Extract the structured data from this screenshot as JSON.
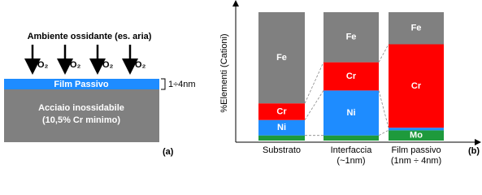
{
  "panel_a": {
    "heading": "Ambiente ossidante (es. aria)",
    "arrows": [
      "O₂",
      "O₂",
      "O₂",
      "O₂"
    ],
    "film": "Film Passivo",
    "thickness": "1÷4nm",
    "substrate_lines": [
      "Acciaio inossidabile",
      "(10,5% Cr minimo)"
    ],
    "tag": "(a)"
  },
  "chart_data": {
    "type": "stacked_bar",
    "ylabel": "%Elementi (Cationi)",
    "tag": "(b)",
    "categories": [
      "Substrato",
      "Interfaccia",
      "Film passivo"
    ],
    "category_sublabels": [
      null,
      "(~1nm)",
      "(1nm ÷ 4nm)"
    ],
    "ylim": [
      0,
      100
    ],
    "series": [
      {
        "name": "Mo",
        "color": "#1e9a3c",
        "values": [
          4,
          4,
          8
        ]
      },
      {
        "name": "Ni",
        "color": "#1e8cff",
        "values": [
          12,
          35,
          2
        ]
      },
      {
        "name": "Cr",
        "color": "#ff0000",
        "values": [
          13,
          22,
          65
        ]
      },
      {
        "name": "Fe",
        "color": "#808080",
        "values": [
          71,
          39,
          25
        ]
      }
    ]
  }
}
